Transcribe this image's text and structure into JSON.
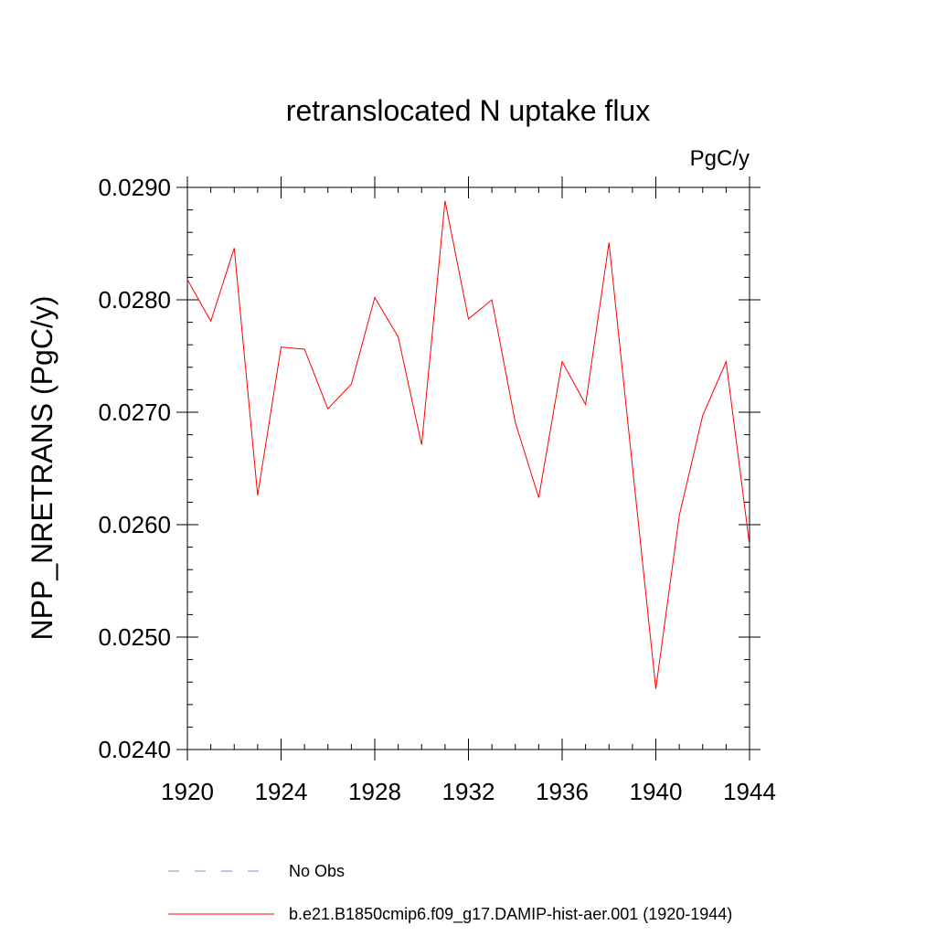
{
  "chart_data": {
    "type": "line",
    "title": "retranslocated N uptake flux",
    "units_label": "PgC/y",
    "ylabel": "NPP_NRETRANS  (PgC/y)",
    "xlabel": "",
    "xlim": [
      1920,
      1944
    ],
    "ylim": [
      0.024,
      0.029
    ],
    "x_ticks": [
      1920,
      1924,
      1928,
      1932,
      1936,
      1940,
      1944
    ],
    "x_tick_labels": [
      "1920",
      "1924",
      "1928",
      "1932",
      "1936",
      "1940",
      "1944"
    ],
    "y_ticks": [
      0.024,
      0.025,
      0.026,
      0.027,
      0.028,
      0.029
    ],
    "y_tick_labels": [
      "0.0240",
      "0.0250",
      "0.0260",
      "0.0270",
      "0.0280",
      "0.0290"
    ],
    "grid": false,
    "legend_position": "bottom",
    "series": [
      {
        "name": "b.e21.B1850cmip6.f09_g17.DAMIP-hist-aer.001 (1920-1944)",
        "color": "#ff0000",
        "dash": "solid",
        "x": [
          1920,
          1921,
          1922,
          1923,
          1924,
          1925,
          1926,
          1927,
          1928,
          1929,
          1930,
          1931,
          1932,
          1933,
          1934,
          1935,
          1936,
          1937,
          1938,
          1939,
          1940,
          1941,
          1942,
          1943,
          1944
        ],
        "y": [
          0.02818,
          0.02781,
          0.02846,
          0.02626,
          0.02758,
          0.02756,
          0.02703,
          0.02725,
          0.02802,
          0.02767,
          0.02671,
          0.02888,
          0.02783,
          0.028,
          0.02691,
          0.02624,
          0.02745,
          0.02707,
          0.02851,
          0.02652,
          0.02454,
          0.02608,
          0.02697,
          0.02745,
          0.02582
        ]
      },
      {
        "name": "No Obs",
        "color": "#8888cc",
        "dash": "dashed",
        "x": [],
        "y": []
      }
    ]
  }
}
